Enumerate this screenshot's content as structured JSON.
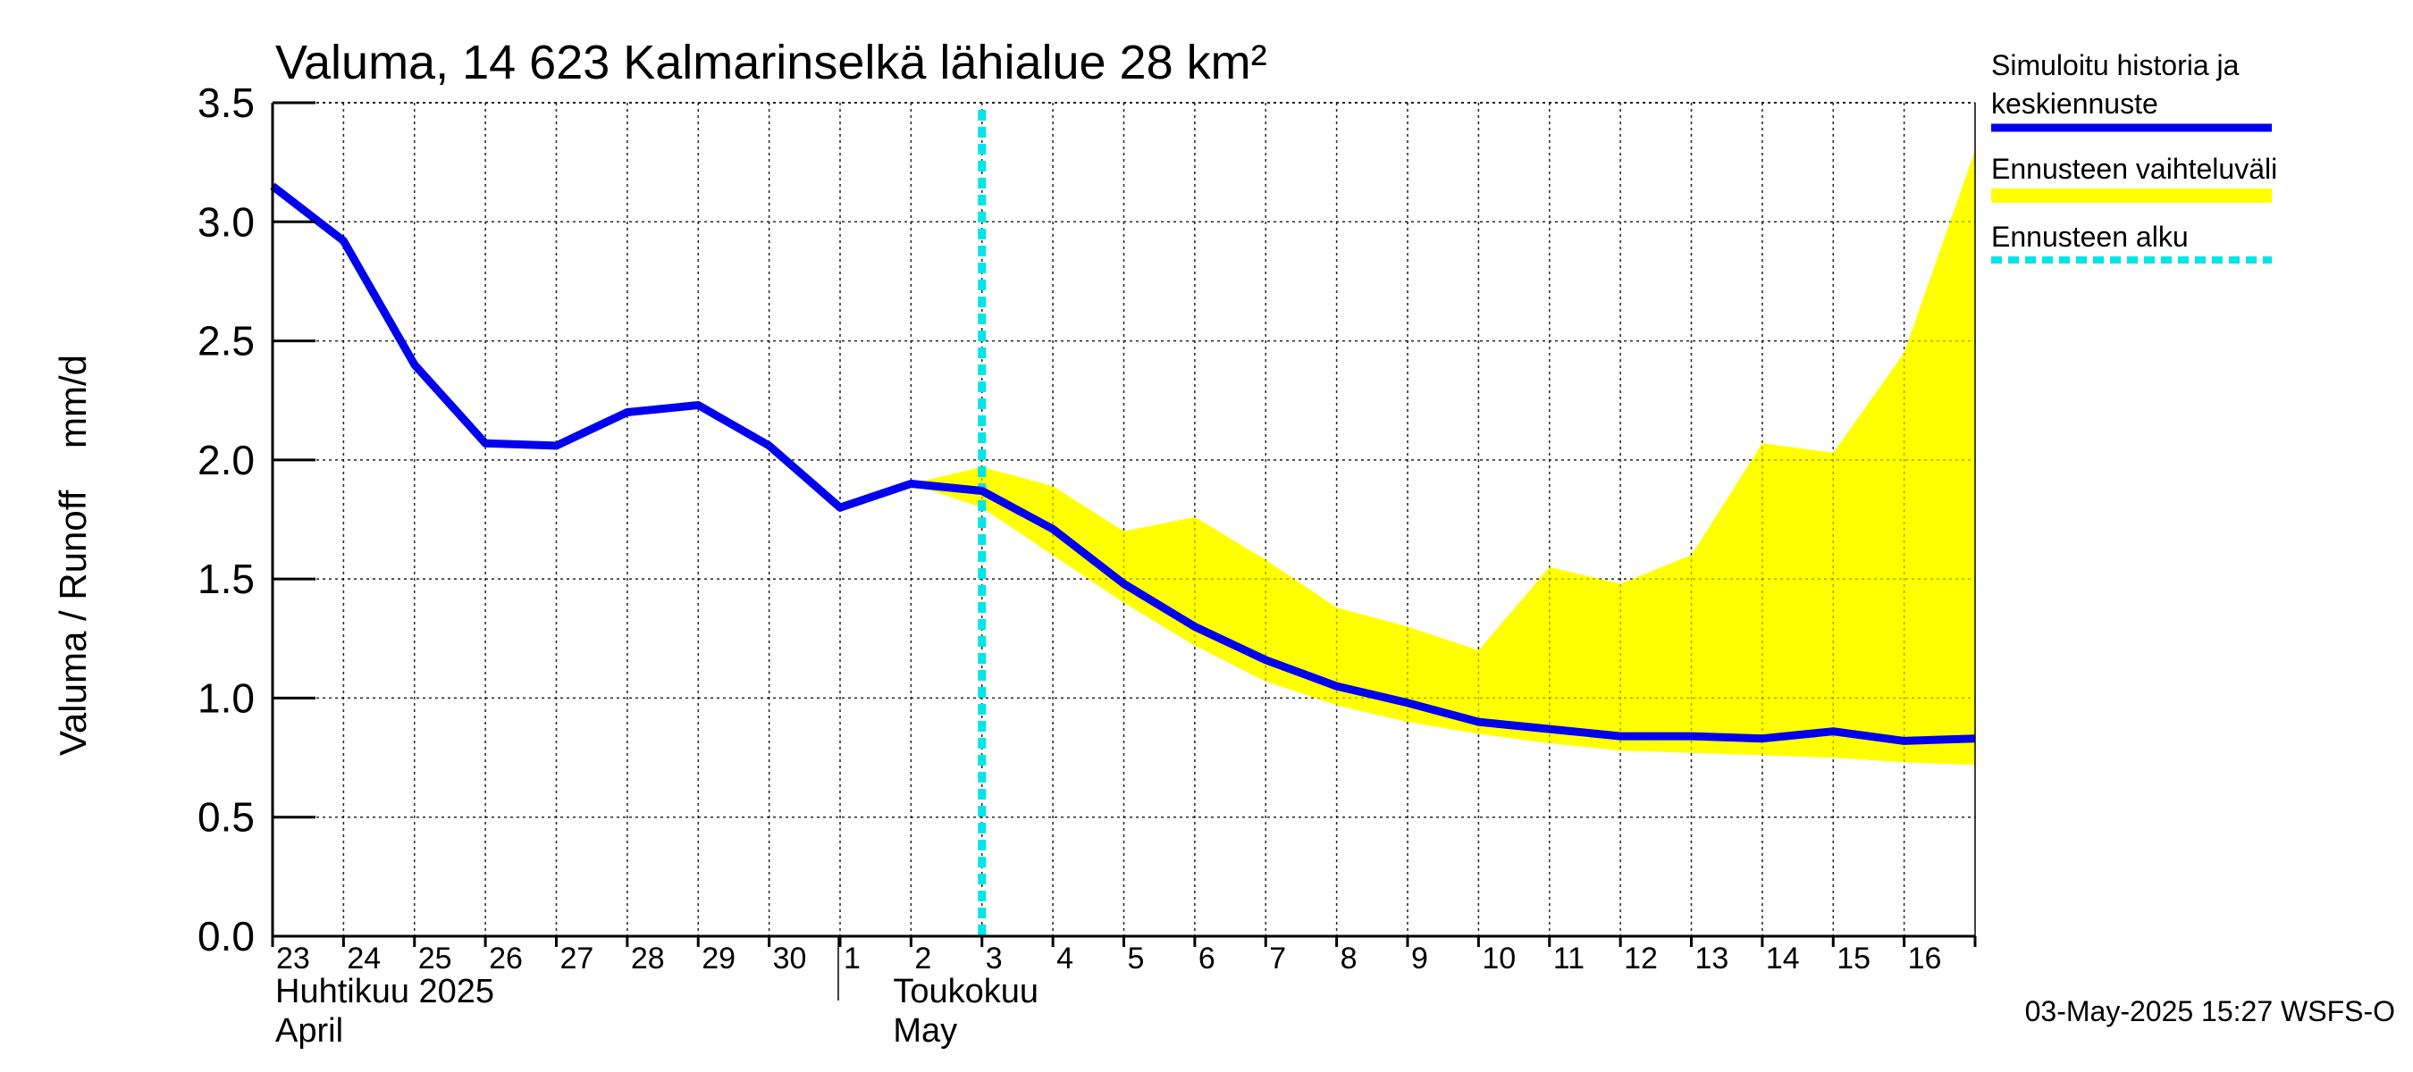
{
  "chart_data": {
    "type": "line",
    "title": "Valuma, 14 623 Kalmarinselkä lähialue 28 km²",
    "ylabel": "Valuma / Runoff    mm/d",
    "ylim": [
      0,
      3.5
    ],
    "yticks": [
      "0.0",
      "0.5",
      "1.0",
      "1.5",
      "2.0",
      "2.5",
      "3.0",
      "3.5"
    ],
    "x_tick_labels": [
      "23",
      "24",
      "25",
      "26",
      "27",
      "28",
      "29",
      "30",
      "1",
      "2",
      "3",
      "4",
      "5",
      "6",
      "7",
      "8",
      "9",
      "10",
      "11",
      "12",
      "13",
      "14",
      "15",
      "16"
    ],
    "month_labels": [
      {
        "line1": "Huhtikuu  2025",
        "line2": "April"
      },
      {
        "line1": "Toukokuu",
        "line2": "May"
      }
    ],
    "forecast_start": "2025-05-03",
    "grid": true,
    "legend_position": "right",
    "series": [
      {
        "name": "Simuloitu historia ja keskiennuste",
        "color": "#0000ee",
        "x": [
          "2025-04-23",
          "2025-04-24",
          "2025-04-25",
          "2025-04-26",
          "2025-04-27",
          "2025-04-28",
          "2025-04-29",
          "2025-04-30",
          "2025-05-01",
          "2025-05-02",
          "2025-05-03",
          "2025-05-04",
          "2025-05-05",
          "2025-05-06",
          "2025-05-07",
          "2025-05-08",
          "2025-05-09",
          "2025-05-10",
          "2025-05-11",
          "2025-05-12",
          "2025-05-13",
          "2025-05-14",
          "2025-05-15",
          "2025-05-16",
          "2025-05-17"
        ],
        "values": [
          3.15,
          2.92,
          2.4,
          2.07,
          2.06,
          2.2,
          2.23,
          2.06,
          1.8,
          1.9,
          1.87,
          1.71,
          1.48,
          1.3,
          1.16,
          1.05,
          0.98,
          0.9,
          0.87,
          0.84,
          0.84,
          0.83,
          0.86,
          0.82,
          0.83
        ]
      },
      {
        "name": "Ennusteen vaihteluväli",
        "color": "#ffff00",
        "x": [
          "2025-05-02",
          "2025-05-03",
          "2025-05-04",
          "2025-05-05",
          "2025-05-06",
          "2025-05-07",
          "2025-05-08",
          "2025-05-09",
          "2025-05-10",
          "2025-05-11",
          "2025-05-12",
          "2025-05-13",
          "2025-05-14",
          "2025-05-15",
          "2025-05-16",
          "2025-05-17"
        ],
        "upper": [
          1.9,
          1.97,
          1.89,
          1.7,
          1.76,
          1.58,
          1.38,
          1.3,
          1.2,
          1.55,
          1.48,
          1.6,
          2.07,
          2.03,
          2.45,
          3.3
        ],
        "lower": [
          1.9,
          1.8,
          1.6,
          1.4,
          1.22,
          1.07,
          0.97,
          0.9,
          0.85,
          0.81,
          0.78,
          0.77,
          0.76,
          0.75,
          0.73,
          0.72
        ]
      }
    ],
    "legend": [
      {
        "line1": "Simuloitu historia ja",
        "line2": "keskiennuste",
        "color": "#0000ee",
        "style": "solid"
      },
      {
        "line1": "Ennusteen vaihteluväli",
        "line2": "",
        "color": "#ffff00",
        "style": "band"
      },
      {
        "line1": "Ennusteen alku",
        "line2": "",
        "color": "#00e5e5",
        "style": "dashed"
      }
    ],
    "footer": "03-May-2025 15:27 WSFS-O"
  }
}
